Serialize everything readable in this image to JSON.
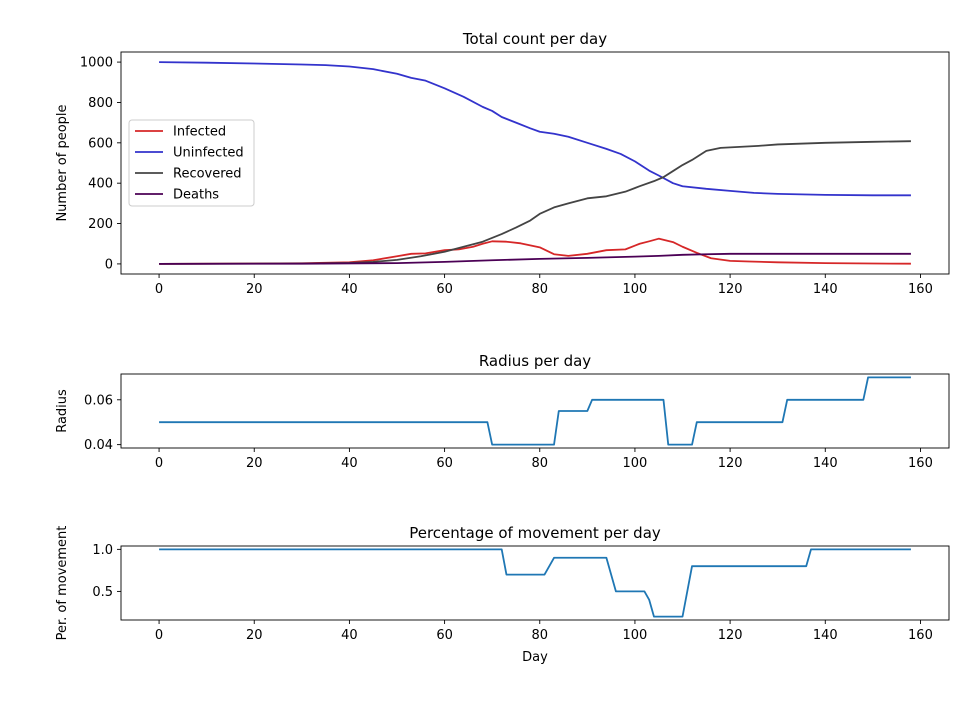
{
  "chart_data": [
    {
      "type": "line",
      "title": "Total count per day",
      "xlabel": "",
      "ylabel": "Number of people",
      "xlim": [
        -8,
        166
      ],
      "ylim": [
        -50,
        1050
      ],
      "xticks": [
        0,
        20,
        40,
        60,
        80,
        100,
        120,
        140,
        160
      ],
      "yticks": [
        0,
        200,
        400,
        600,
        800,
        1000
      ],
      "legend_position": "center-left",
      "series": [
        {
          "name": "Infected",
          "color": "#d62728",
          "points": [
            [
              0,
              0
            ],
            [
              30,
              3
            ],
            [
              40,
              8
            ],
            [
              45,
              18
            ],
            [
              50,
              38
            ],
            [
              53,
              50
            ],
            [
              56,
              52
            ],
            [
              60,
              68
            ],
            [
              63,
              72
            ],
            [
              66,
              85
            ],
            [
              68,
              100
            ],
            [
              70,
              112
            ],
            [
              73,
              110
            ],
            [
              76,
              102
            ],
            [
              80,
              82
            ],
            [
              83,
              48
            ],
            [
              86,
              40
            ],
            [
              90,
              50
            ],
            [
              94,
              68
            ],
            [
              98,
              72
            ],
            [
              101,
              100
            ],
            [
              103,
              112
            ],
            [
              105,
              125
            ],
            [
              108,
              108
            ],
            [
              110,
              85
            ],
            [
              113,
              55
            ],
            [
              116,
              28
            ],
            [
              120,
              15
            ],
            [
              124,
              12
            ],
            [
              130,
              8
            ],
            [
              140,
              4
            ],
            [
              150,
              2
            ],
            [
              158,
              1
            ]
          ]
        },
        {
          "name": "Uninfected",
          "color": "#3333cc",
          "points": [
            [
              0,
              1000
            ],
            [
              10,
              997
            ],
            [
              20,
              993
            ],
            [
              30,
              988
            ],
            [
              35,
              985
            ],
            [
              40,
              978
            ],
            [
              45,
              965
            ],
            [
              50,
              942
            ],
            [
              53,
              922
            ],
            [
              56,
              908
            ],
            [
              60,
              870
            ],
            [
              64,
              828
            ],
            [
              68,
              778
            ],
            [
              70,
              758
            ],
            [
              72,
              728
            ],
            [
              75,
              700
            ],
            [
              78,
              672
            ],
            [
              80,
              655
            ],
            [
              83,
              645
            ],
            [
              86,
              630
            ],
            [
              90,
              600
            ],
            [
              94,
              570
            ],
            [
              97,
              545
            ],
            [
              100,
              508
            ],
            [
              103,
              462
            ],
            [
              105,
              438
            ],
            [
              108,
              400
            ],
            [
              110,
              385
            ],
            [
              115,
              372
            ],
            [
              120,
              362
            ],
            [
              125,
              352
            ],
            [
              130,
              347
            ],
            [
              140,
              342
            ],
            [
              150,
              340
            ],
            [
              158,
              340
            ]
          ]
        },
        {
          "name": "Recovered",
          "color": "#444444",
          "points": [
            [
              0,
              0
            ],
            [
              30,
              2
            ],
            [
              40,
              5
            ],
            [
              45,
              10
            ],
            [
              50,
              20
            ],
            [
              55,
              38
            ],
            [
              60,
              60
            ],
            [
              64,
              85
            ],
            [
              68,
              110
            ],
            [
              72,
              148
            ],
            [
              75,
              180
            ],
            [
              78,
              215
            ],
            [
              80,
              248
            ],
            [
              83,
              280
            ],
            [
              86,
              300
            ],
            [
              90,
              325
            ],
            [
              94,
              335
            ],
            [
              98,
              358
            ],
            [
              101,
              385
            ],
            [
              104,
              410
            ],
            [
              106,
              430
            ],
            [
              108,
              460
            ],
            [
              110,
              490
            ],
            [
              112,
              515
            ],
            [
              115,
              560
            ],
            [
              118,
              575
            ],
            [
              122,
              580
            ],
            [
              126,
              585
            ],
            [
              130,
              592
            ],
            [
              140,
              600
            ],
            [
              150,
              605
            ],
            [
              158,
              608
            ]
          ]
        },
        {
          "name": "Deaths",
          "color": "#4b0055",
          "points": [
            [
              0,
              0
            ],
            [
              30,
              1
            ],
            [
              50,
              4
            ],
            [
              60,
              10
            ],
            [
              70,
              18
            ],
            [
              80,
              25
            ],
            [
              90,
              30
            ],
            [
              100,
              36
            ],
            [
              105,
              40
            ],
            [
              110,
              45
            ],
            [
              115,
              48
            ],
            [
              120,
              50
            ],
            [
              158,
              50
            ]
          ]
        }
      ]
    },
    {
      "type": "line",
      "title": "Radius per day",
      "xlabel": "",
      "ylabel": "Radius",
      "xlim": [
        -8,
        166
      ],
      "ylim": [
        0.0385,
        0.0715
      ],
      "xticks": [
        0,
        20,
        40,
        60,
        80,
        100,
        120,
        140,
        160
      ],
      "yticks": [
        0.04,
        0.06
      ],
      "ytick_labels": [
        "0.04",
        "0.06"
      ],
      "series": [
        {
          "color": "#1f77b4",
          "points": [
            [
              0,
              0.05
            ],
            [
              69,
              0.05
            ],
            [
              70,
              0.04
            ],
            [
              83,
              0.04
            ],
            [
              84,
              0.055
            ],
            [
              90,
              0.055
            ],
            [
              91,
              0.06
            ],
            [
              106,
              0.06
            ],
            [
              107,
              0.04
            ],
            [
              112,
              0.04
            ],
            [
              113,
              0.05
            ],
            [
              131,
              0.05
            ],
            [
              132,
              0.06
            ],
            [
              148,
              0.06
            ],
            [
              149,
              0.07
            ],
            [
              158,
              0.07
            ]
          ]
        }
      ]
    },
    {
      "type": "line",
      "title": "Percentage of movement per day",
      "xlabel": "Day",
      "ylabel": "Per. of movement",
      "xlim": [
        -8,
        166
      ],
      "ylim": [
        0.16,
        1.04
      ],
      "xticks": [
        0,
        20,
        40,
        60,
        80,
        100,
        120,
        140,
        160
      ],
      "yticks": [
        0.5,
        1.0
      ],
      "ytick_labels": [
        "0.5",
        "1.0"
      ],
      "series": [
        {
          "color": "#1f77b4",
          "points": [
            [
              0,
              1.0
            ],
            [
              72,
              1.0
            ],
            [
              73,
              0.7
            ],
            [
              81,
              0.7
            ],
            [
              83,
              0.9
            ],
            [
              94,
              0.9
            ],
            [
              96,
              0.5
            ],
            [
              102,
              0.5
            ],
            [
              103,
              0.4
            ],
            [
              104,
              0.2
            ],
            [
              110,
              0.2
            ],
            [
              112,
              0.8
            ],
            [
              136,
              0.8
            ],
            [
              137,
              1.0
            ],
            [
              158,
              1.0
            ]
          ]
        }
      ]
    }
  ]
}
